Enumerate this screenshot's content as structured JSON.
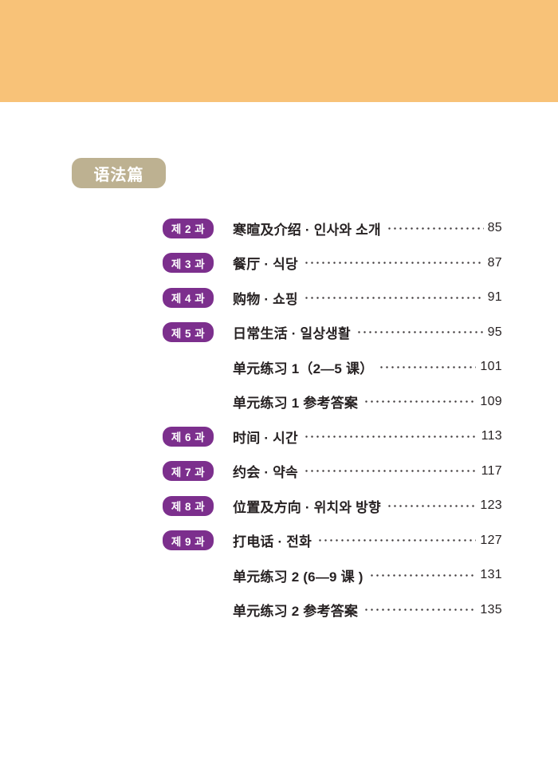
{
  "colors": {
    "banner": "#f8c278",
    "section_badge": "#bdb191",
    "lesson_badge": "#7c2f8d",
    "ink": "#272223",
    "page_bg": "#ffffff"
  },
  "section_label": {
    "text": "语法篇"
  },
  "toc": {
    "items": [
      {
        "badge": "제 2 과",
        "title": "寒暄及介绍 · 인사와 소개",
        "page": "85"
      },
      {
        "badge": "제 3 과",
        "title": "餐厅 · 식당",
        "page": "87"
      },
      {
        "badge": "제 4 과",
        "title": "购物 · 쇼핑",
        "page": "91"
      },
      {
        "badge": "제 5 과",
        "title": "日常生活 · 일상생활",
        "page": "95"
      },
      {
        "badge": null,
        "title": "单元练习 1（2—5 课）",
        "page": "101"
      },
      {
        "badge": null,
        "title": "单元练习 1 参考答案",
        "page": "109"
      },
      {
        "badge": "제 6 과",
        "title": "时间 · 시간",
        "page": "113"
      },
      {
        "badge": "제 7 과",
        "title": "约会 · 약속",
        "page": "117"
      },
      {
        "badge": "제 8 과",
        "title": "位置及方向 · 위치와 방향",
        "page": "123"
      },
      {
        "badge": "제 9 과",
        "title": "打电话 · 전화",
        "page": "127"
      },
      {
        "badge": null,
        "title": "单元练习 2 (6—9 课 )",
        "page": "131"
      },
      {
        "badge": null,
        "title": "单元练习 2 参考答案",
        "page": "135"
      }
    ]
  }
}
